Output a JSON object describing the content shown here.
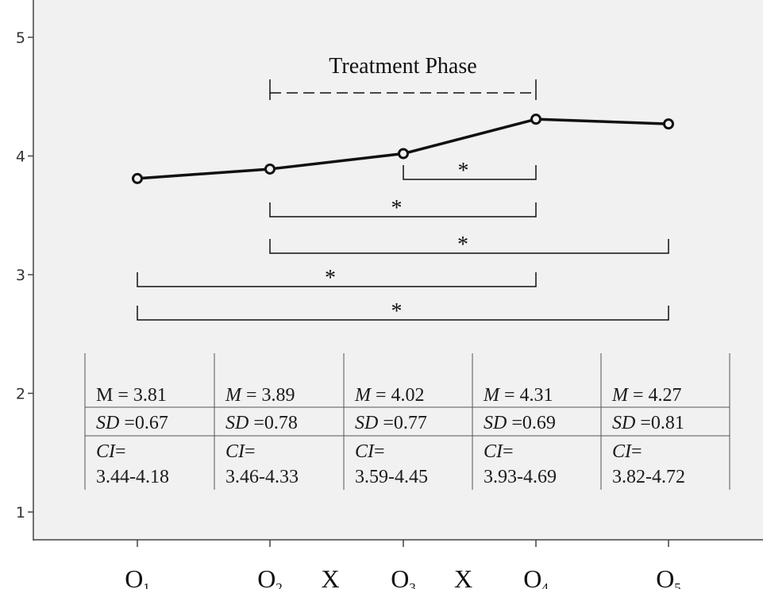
{
  "chart_data": {
    "type": "line",
    "title": "",
    "xlabel": "",
    "ylabel": "",
    "ylim": [
      1,
      5
    ],
    "yticks": [
      1,
      2,
      3,
      4,
      5
    ],
    "grid": false,
    "categories": [
      {
        "label": "O",
        "sub": "1"
      },
      {
        "label": "O",
        "sub": "2"
      },
      {
        "label": "O",
        "sub": "3"
      },
      {
        "label": "O",
        "sub": "4"
      },
      {
        "label": "O",
        "sub": "5"
      }
    ],
    "between_labels": [
      {
        "after_index": 1,
        "text": "X"
      },
      {
        "after_index": 2,
        "text": "X"
      }
    ],
    "series": [
      {
        "values": [
          3.81,
          3.89,
          4.02,
          4.31,
          4.27
        ]
      }
    ],
    "phase_annotation": {
      "text": "Treatment Phase",
      "from_index": 1,
      "to_index": 3
    },
    "significance_brackets": [
      {
        "from_index": 2,
        "to_index": 3,
        "label": "*"
      },
      {
        "from_index": 1,
        "to_index": 3,
        "label": "*"
      },
      {
        "from_index": 1,
        "to_index": 4,
        "label": "*"
      },
      {
        "from_index": 0,
        "to_index": 3,
        "label": "*"
      },
      {
        "from_index": 0,
        "to_index": 4,
        "label": "*"
      }
    ],
    "stats_table": [
      {
        "m_label": "M",
        "m_italic": false,
        "m_value": "3.81",
        "sd_label": "SD",
        "sd_value": "0.67",
        "ci_label": "CI",
        "ci_value": "3.44-4.18"
      },
      {
        "m_label": "M",
        "m_italic": true,
        "m_value": "3.89",
        "sd_label": "SD",
        "sd_value": "0.78",
        "ci_label": "CI",
        "ci_value": "3.46-4.33"
      },
      {
        "m_label": "M",
        "m_italic": true,
        "m_value": "4.02",
        "sd_label": "SD",
        "sd_value": "0.77",
        "ci_label": "CI",
        "ci_value": "3.59-4.45"
      },
      {
        "m_label": "M",
        "m_italic": true,
        "m_value": "4.31",
        "sd_label": "SD",
        "sd_value": "0.69",
        "ci_label": "CI",
        "ci_value": "3.93-4.69"
      },
      {
        "m_label": "M",
        "m_italic": true,
        "m_value": "4.27",
        "sd_label": "SD",
        "sd_value": "0.81",
        "ci_label": "CI",
        "ci_value": "3.82-4.72"
      }
    ],
    "colors": {
      "plot_background": "#f1f1f1",
      "line": "#111111",
      "axis": "#444444"
    }
  }
}
